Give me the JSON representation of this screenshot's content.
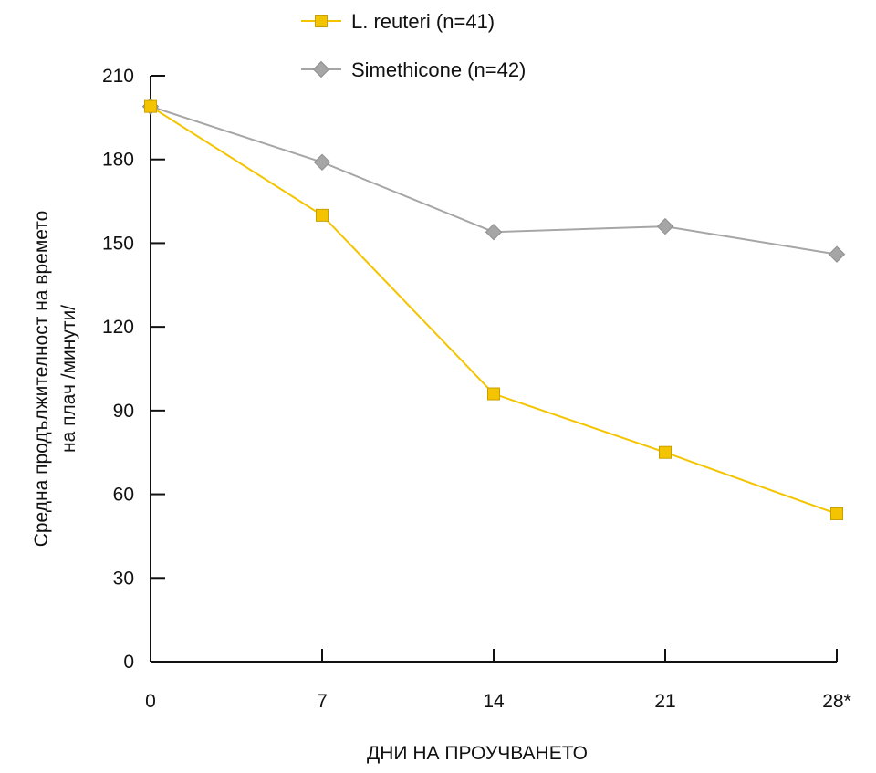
{
  "chart_data": {
    "type": "line",
    "title": "",
    "xlabel": "ДНИ НА ПРОУЧВАНЕТО",
    "ylabel_lines": [
      "Средна продължителност на времето",
      "на плач /минути/"
    ],
    "x": [
      0,
      7,
      14,
      21,
      28
    ],
    "x_tick_labels": [
      "0",
      "7",
      "14",
      "21",
      "28*"
    ],
    "y_ticks": [
      0,
      30,
      60,
      90,
      120,
      150,
      180,
      210
    ],
    "ylim": [
      0,
      210
    ],
    "grid": false,
    "legend_position": "top",
    "series": [
      {
        "name": "L. reuteri (n=41)",
        "values": [
          199,
          160,
          96,
          75,
          53
        ],
        "color": "#f5c400",
        "marker": "square"
      },
      {
        "name": "Simethicone (n=42)",
        "values": [
          199,
          179,
          154,
          156,
          146
        ],
        "color": "#a6a6a6",
        "marker": "diamond"
      }
    ]
  }
}
